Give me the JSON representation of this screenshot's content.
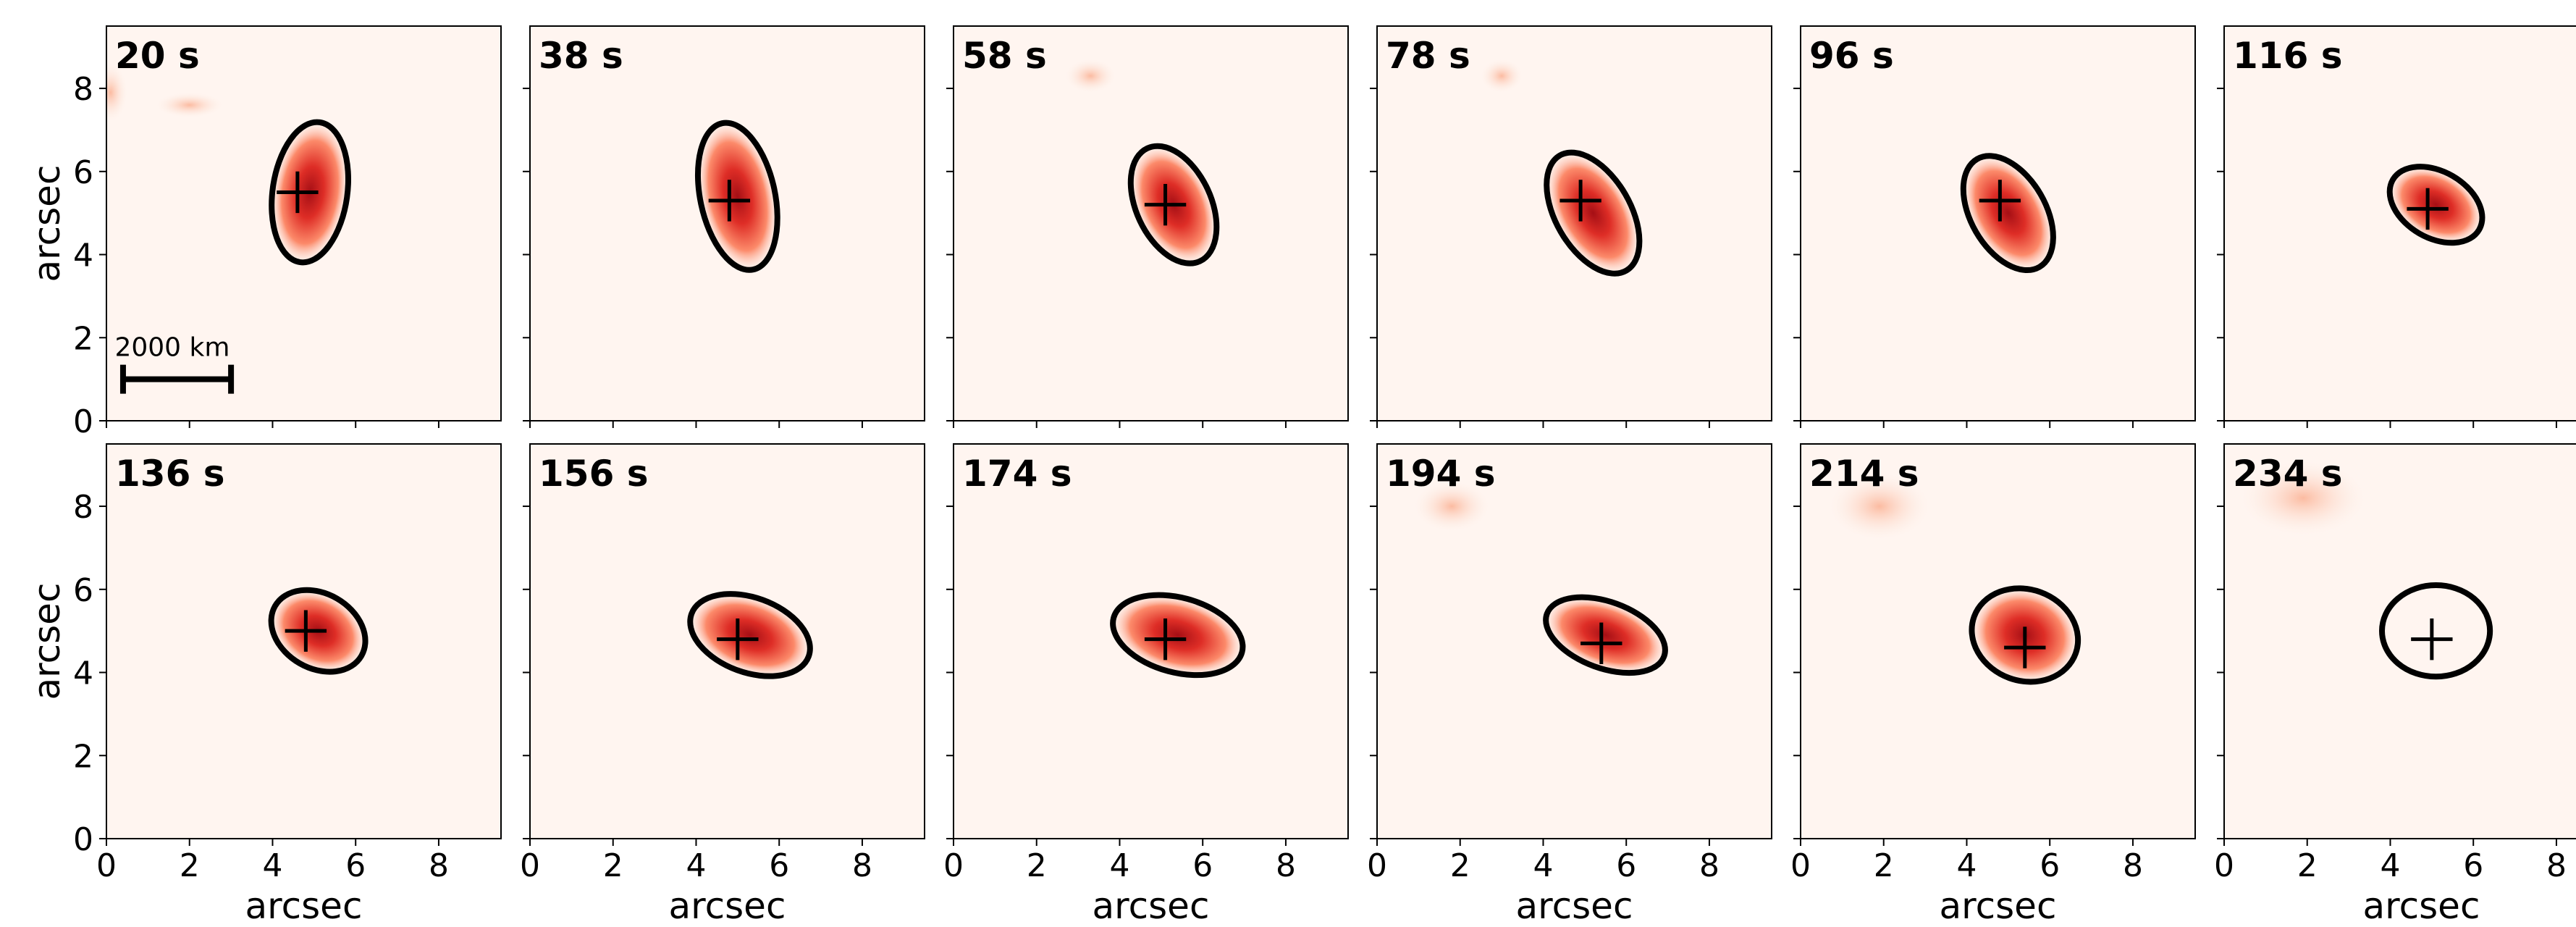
{
  "chart_data": [
    {
      "type": "scatter",
      "title": "20 s",
      "x": [
        4.6
      ],
      "y": [
        5.5
      ],
      "color": "#000000",
      "ylabel": "arcsec",
      "xlim": [
        0,
        9.5
      ],
      "ylim": [
        0,
        9.5
      ],
      "xticks": [
        0,
        2,
        4,
        6,
        8
      ],
      "yticks": [
        0,
        2,
        4,
        6,
        8
      ],
      "scale_bar": {
        "label": "2000 km",
        "x": [
          0.4,
          3.0
        ]
      }
    },
    {
      "type": "scatter",
      "title": "38 s",
      "x": [
        4.8
      ],
      "y": [
        5.3
      ],
      "color": "#000000",
      "xlim": [
        0,
        9.5
      ],
      "ylim": [
        0,
        9.5
      ],
      "xticks": [
        0,
        2,
        4,
        6,
        8
      ],
      "yticks": [
        0,
        2,
        4,
        6,
        8
      ]
    },
    {
      "type": "scatter",
      "title": "58 s",
      "x": [
        5.1
      ],
      "y": [
        5.2
      ],
      "color": "#000000",
      "xlim": [
        0,
        9.5
      ],
      "ylim": [
        0,
        9.5
      ],
      "xticks": [
        0,
        2,
        4,
        6,
        8
      ],
      "yticks": [
        0,
        2,
        4,
        6,
        8
      ]
    },
    {
      "type": "scatter",
      "title": "78 s",
      "x": [
        4.9
      ],
      "y": [
        5.3
      ],
      "color": "#000000",
      "xlim": [
        0,
        9.5
      ],
      "ylim": [
        0,
        9.5
      ],
      "xticks": [
        0,
        2,
        4,
        6,
        8
      ],
      "yticks": [
        0,
        2,
        4,
        6,
        8
      ]
    },
    {
      "type": "scatter",
      "title": "96 s",
      "x": [
        4.8
      ],
      "y": [
        5.3
      ],
      "color": "#000000",
      "xlim": [
        0,
        9.5
      ],
      "ylim": [
        0,
        9.5
      ],
      "xticks": [
        0,
        2,
        4,
        6,
        8
      ],
      "yticks": [
        0,
        2,
        4,
        6,
        8
      ]
    },
    {
      "type": "scatter",
      "title": "116 s",
      "x": [
        4.9
      ],
      "y": [
        5.1
      ],
      "color": "#000000",
      "xlim": [
        0,
        9.5
      ],
      "ylim": [
        0,
        9.5
      ],
      "xticks": [
        0,
        2,
        4,
        6,
        8
      ],
      "yticks": [
        0,
        2,
        4,
        6,
        8
      ]
    },
    {
      "type": "scatter",
      "title": "136 s",
      "x": [
        4.8
      ],
      "y": [
        5.0
      ],
      "color": "#000000",
      "xlabel": "arcsec",
      "ylabel": "arcsec",
      "xlim": [
        0,
        9.5
      ],
      "ylim": [
        0,
        9.5
      ],
      "xticks": [
        0,
        2,
        4,
        6,
        8
      ],
      "yticks": [
        0,
        2,
        4,
        6,
        8
      ]
    },
    {
      "type": "scatter",
      "title": "156 s",
      "x": [
        5.0
      ],
      "y": [
        4.8
      ],
      "color": "#000000",
      "xlabel": "arcsec",
      "xlim": [
        0,
        9.5
      ],
      "ylim": [
        0,
        9.5
      ],
      "xticks": [
        0,
        2,
        4,
        6,
        8
      ],
      "yticks": [
        0,
        2,
        4,
        6,
        8
      ]
    },
    {
      "type": "scatter",
      "title": "174 s",
      "x": [
        5.1
      ],
      "y": [
        4.8
      ],
      "color": "#000000",
      "xlabel": "arcsec",
      "xlim": [
        0,
        9.5
      ],
      "ylim": [
        0,
        9.5
      ],
      "xticks": [
        0,
        2,
        4,
        6,
        8
      ],
      "yticks": [
        0,
        2,
        4,
        6,
        8
      ]
    },
    {
      "type": "scatter",
      "title": "194 s",
      "x": [
        5.4
      ],
      "y": [
        4.7
      ],
      "color": "#000000",
      "xlabel": "arcsec",
      "xlim": [
        0,
        9.5
      ],
      "ylim": [
        0,
        9.5
      ],
      "xticks": [
        0,
        2,
        4,
        6,
        8
      ],
      "yticks": [
        0,
        2,
        4,
        6,
        8
      ]
    },
    {
      "type": "scatter",
      "title": "214 s",
      "x": [
        5.4
      ],
      "y": [
        4.6
      ],
      "color": "#000000",
      "xlabel": "arcsec",
      "xlim": [
        0,
        9.5
      ],
      "ylim": [
        0,
        9.5
      ],
      "xticks": [
        0,
        2,
        4,
        6,
        8
      ],
      "yticks": [
        0,
        2,
        4,
        6,
        8
      ]
    },
    {
      "type": "scatter",
      "title": "234 s",
      "x": [
        5.0
      ],
      "y": [
        4.8
      ],
      "color": "#000000",
      "xlabel": "arcsec",
      "xlim": [
        0,
        9.5
      ],
      "ylim": [
        0,
        9.5
      ],
      "xticks": [
        0,
        2,
        4,
        6,
        8
      ],
      "yticks": [
        0,
        2,
        4,
        6,
        8
      ]
    }
  ]
}
